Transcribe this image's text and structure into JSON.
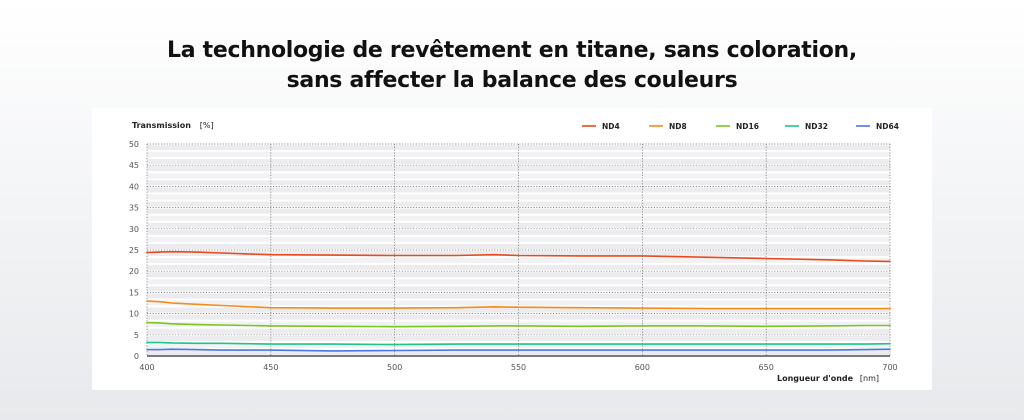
{
  "headline": {
    "line1": "La technologie de revêtement en titane, sans coloration,",
    "line2": "sans affecter la balance des couleurs"
  },
  "chart_data": {
    "type": "line",
    "ylabel": "Transmission",
    "yunit": "[%]",
    "xlabel": "Longueur d'onde",
    "xunit": "[nm]",
    "xlim": [
      400,
      700
    ],
    "ylim": [
      0,
      50
    ],
    "yticks": [
      0,
      5,
      10,
      15,
      20,
      25,
      30,
      35,
      40,
      45,
      50
    ],
    "xticks": [
      400,
      450,
      500,
      550,
      600,
      650,
      700
    ],
    "grid": true,
    "legend_position": "top-right",
    "x": [
      400,
      405,
      410,
      420,
      430,
      450,
      475,
      500,
      525,
      540,
      550,
      575,
      600,
      625,
      650,
      675,
      690,
      700
    ],
    "series": [
      {
        "name": "ND4",
        "color": "#e8491d",
        "values": [
          24.4,
          24.5,
          24.6,
          24.5,
          24.3,
          23.9,
          23.8,
          23.7,
          23.7,
          23.9,
          23.7,
          23.6,
          23.6,
          23.3,
          23.0,
          22.7,
          22.4,
          22.3
        ]
      },
      {
        "name": "ND8",
        "color": "#f28c1a",
        "values": [
          13.0,
          12.8,
          12.5,
          12.2,
          11.9,
          11.4,
          11.3,
          11.3,
          11.4,
          11.6,
          11.5,
          11.4,
          11.3,
          11.2,
          11.2,
          11.2,
          11.2,
          11.2
        ]
      },
      {
        "name": "ND16",
        "color": "#7cc520",
        "values": [
          7.9,
          7.8,
          7.6,
          7.4,
          7.3,
          7.1,
          7.0,
          6.9,
          7.0,
          7.1,
          7.1,
          7.0,
          7.1,
          7.1,
          7.0,
          7.1,
          7.2,
          7.2
        ]
      },
      {
        "name": "ND32",
        "color": "#20c38a",
        "values": [
          3.2,
          3.2,
          3.1,
          3.0,
          3.0,
          2.8,
          2.8,
          2.7,
          2.8,
          2.8,
          2.8,
          2.8,
          2.8,
          2.8,
          2.8,
          2.8,
          2.8,
          2.9
        ]
      },
      {
        "name": "ND64",
        "color": "#4a78e0",
        "values": [
          1.5,
          1.5,
          1.6,
          1.5,
          1.4,
          1.4,
          1.2,
          1.3,
          1.4,
          1.4,
          1.4,
          1.4,
          1.4,
          1.4,
          1.4,
          1.4,
          1.5,
          1.6
        ]
      }
    ]
  }
}
